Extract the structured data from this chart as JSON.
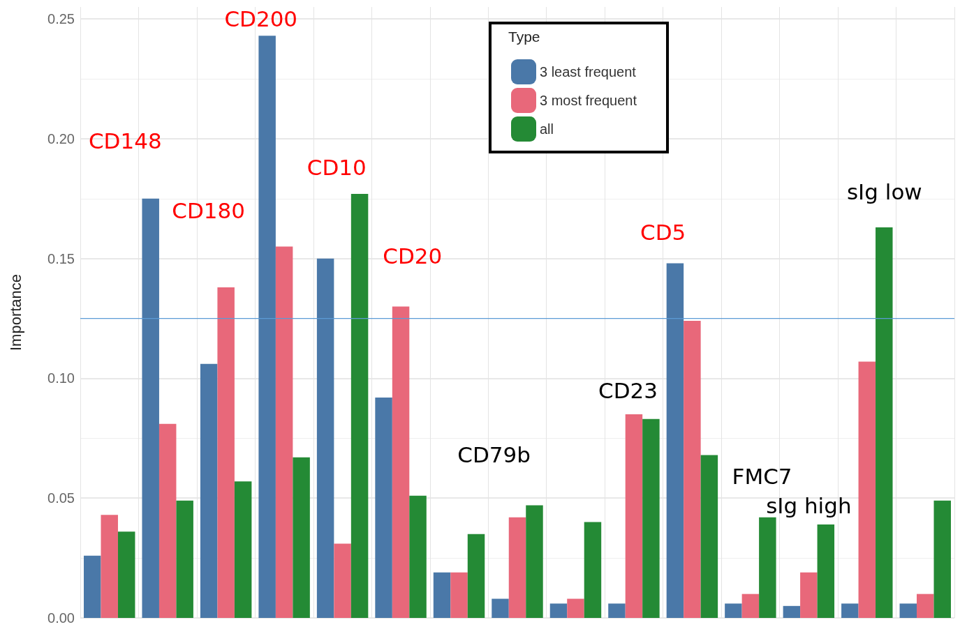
{
  "chart_data": {
    "type": "bar",
    "ylabel": "Importance",
    "legend_title": "Type",
    "legend": "top",
    "grid": true,
    "categories": [
      null,
      null,
      null,
      null,
      null,
      null,
      null,
      null,
      null,
      null,
      null,
      null,
      null,
      null,
      null
    ],
    "series": [
      {
        "name": "3 least frequent",
        "color": "#4a78a8",
        "values": [
          0.026,
          0.175,
          0.106,
          0.243,
          0.15,
          0.092,
          0.019,
          0.008,
          0.006,
          0.006,
          0.148,
          0.006,
          0.005,
          0.006,
          0.006
        ]
      },
      {
        "name": "3 most frequent",
        "color": "#e8687a",
        "values": [
          0.043,
          0.081,
          0.138,
          0.155,
          0.031,
          0.13,
          0.019,
          0.042,
          0.008,
          0.085,
          0.124,
          0.01,
          0.019,
          0.107,
          0.01
        ]
      },
      {
        "name": "all",
        "color": "#248a35",
        "values": [
          0.036,
          0.049,
          0.057,
          0.067,
          0.177,
          0.051,
          0.035,
          0.047,
          0.04,
          0.083,
          0.068,
          0.042,
          0.039,
          0.163,
          0.049
        ]
      }
    ],
    "ylim": [
      0,
      0.255
    ],
    "yticks": [
      {
        "value": 0,
        "label": "0.00"
      },
      {
        "value": 0.05,
        "label": "0.05"
      },
      {
        "value": 0.1,
        "label": "0.10"
      },
      {
        "value": 0.15,
        "label": "0.15"
      },
      {
        "value": 0.2,
        "label": "0.20"
      },
      {
        "value": 0.25,
        "label": "0.25"
      }
    ],
    "ref_lines": [
      {
        "axis": "y",
        "value": 0.125,
        "color": "#5b9bd5"
      }
    ],
    "annotations": [
      "CD148",
      "CD180",
      "CD200",
      "CD10",
      "CD20",
      "CD79b",
      "CD23",
      "CD5",
      "FMC7",
      "sIg high",
      "sIg low"
    ]
  }
}
